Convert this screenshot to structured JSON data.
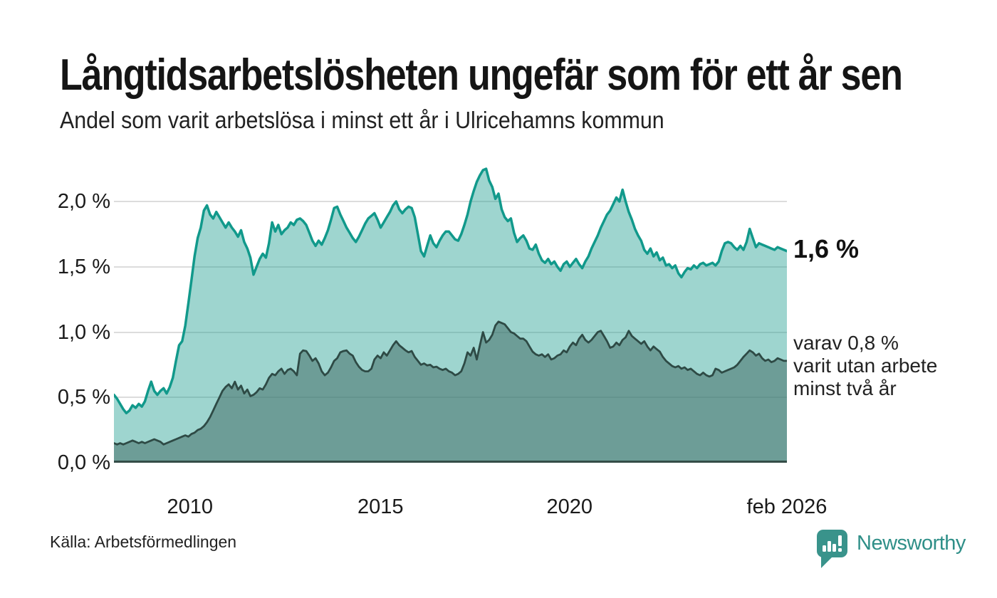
{
  "title": "Långtidsarbetslösheten ungefär som för ett år sen",
  "subtitle": "Andel som varit arbetslösa i minst ett år i Ulricehamns kommun",
  "source": "Källa: Arbetsförmedlingen",
  "logo": {
    "text": "Newsworthy"
  },
  "colors": {
    "accent_teal": "#11998b",
    "light_fill": "#9ed4cf",
    "dark_fill": "#6f9d97",
    "dark_stroke": "#2e4a45",
    "grid": "#dcdcdc",
    "baseline": "#344c47",
    "text": "#1a1a1a",
    "logo_teal": "#2f8f88"
  },
  "annotations": {
    "end_value_label": "1,6 %",
    "secondary_label_lines": [
      "varav 0,8 %",
      "varit utan arbete",
      "minst två år"
    ]
  },
  "chart_data": {
    "type": "area",
    "title": "Långtidsarbetslösheten ungefär som för ett år sen",
    "subtitle": "Andel som varit arbetslösa i minst ett år i Ulricehamns kommun",
    "unit": "%",
    "frequency": "monthly",
    "x_start": "2008-01",
    "x_end": "2026-02",
    "ylim": [
      0,
      2.34
    ],
    "grid": "horizontal",
    "legend": "end-labels",
    "yticks": [
      {
        "value": 0.0,
        "label": "0,0 %"
      },
      {
        "value": 0.5,
        "label": "0,5 %"
      },
      {
        "value": 1.0,
        "label": "1,0 %"
      },
      {
        "value": 1.5,
        "label": "1,5 %"
      },
      {
        "value": 2.0,
        "label": "2,0 %"
      }
    ],
    "xticks": [
      {
        "label": "2010",
        "pos": 0.113
      },
      {
        "label": "2015",
        "pos": 0.396
      },
      {
        "label": "2020",
        "pos": 0.677
      },
      {
        "label": "feb 2026",
        "pos": 1.0
      }
    ],
    "series": [
      {
        "name": "Andel arbetslösa minst ett år",
        "end_label": "1,6 %",
        "end_value": 1.6,
        "stroke": "#11998b",
        "fill": "rgba(23,154,140,0.42)",
        "stroke_width": 3.5,
        "values": [
          0.52,
          0.49,
          0.45,
          0.41,
          0.38,
          0.4,
          0.44,
          0.42,
          0.45,
          0.43,
          0.47,
          0.55,
          0.62,
          0.55,
          0.52,
          0.55,
          0.57,
          0.53,
          0.58,
          0.65,
          0.78,
          0.9,
          0.93,
          1.05,
          1.22,
          1.4,
          1.58,
          1.72,
          1.8,
          1.93,
          1.97,
          1.9,
          1.87,
          1.92,
          1.88,
          1.84,
          1.8,
          1.84,
          1.8,
          1.77,
          1.73,
          1.78,
          1.69,
          1.64,
          1.57,
          1.44,
          1.5,
          1.56,
          1.6,
          1.57,
          1.68,
          1.84,
          1.77,
          1.82,
          1.75,
          1.78,
          1.8,
          1.84,
          1.82,
          1.86,
          1.87,
          1.85,
          1.82,
          1.76,
          1.7,
          1.66,
          1.7,
          1.67,
          1.72,
          1.78,
          1.86,
          1.95,
          1.96,
          1.9,
          1.85,
          1.8,
          1.76,
          1.72,
          1.69,
          1.73,
          1.78,
          1.83,
          1.87,
          1.89,
          1.91,
          1.86,
          1.8,
          1.84,
          1.88,
          1.92,
          1.97,
          2.0,
          1.94,
          1.91,
          1.94,
          1.96,
          1.95,
          1.88,
          1.75,
          1.62,
          1.58,
          1.66,
          1.74,
          1.68,
          1.65,
          1.7,
          1.74,
          1.77,
          1.77,
          1.74,
          1.71,
          1.7,
          1.75,
          1.82,
          1.9,
          2.0,
          2.08,
          2.15,
          2.2,
          2.24,
          2.25,
          2.16,
          2.11,
          2.02,
          2.06,
          1.94,
          1.88,
          1.85,
          1.87,
          1.76,
          1.69,
          1.72,
          1.74,
          1.7,
          1.64,
          1.63,
          1.67,
          1.6,
          1.55,
          1.53,
          1.56,
          1.52,
          1.54,
          1.5,
          1.47,
          1.52,
          1.54,
          1.5,
          1.53,
          1.56,
          1.52,
          1.49,
          1.54,
          1.58,
          1.64,
          1.69,
          1.74,
          1.8,
          1.85,
          1.9,
          1.93,
          1.98,
          2.03,
          2.0,
          2.09,
          2.0,
          1.92,
          1.86,
          1.79,
          1.74,
          1.7,
          1.63,
          1.6,
          1.64,
          1.58,
          1.61,
          1.55,
          1.57,
          1.51,
          1.52,
          1.49,
          1.51,
          1.45,
          1.42,
          1.46,
          1.49,
          1.48,
          1.51,
          1.49,
          1.52,
          1.53,
          1.51,
          1.52,
          1.53,
          1.51,
          1.54,
          1.62,
          1.68,
          1.69,
          1.68,
          1.65,
          1.63,
          1.66,
          1.63,
          1.69,
          1.79,
          1.72,
          1.65,
          1.68,
          1.67,
          1.66,
          1.65,
          1.64,
          1.63,
          1.65,
          1.64,
          1.63,
          1.62
        ]
      },
      {
        "name": "Andel arbetslösa minst två år",
        "end_label": "varav 0,8 % varit utan arbete minst två år",
        "end_value": 0.8,
        "stroke": "#2e4a45",
        "fill": "rgba(69,112,105,0.55)",
        "stroke_width": 2.8,
        "values": [
          0.15,
          0.14,
          0.15,
          0.14,
          0.15,
          0.16,
          0.17,
          0.16,
          0.15,
          0.16,
          0.15,
          0.16,
          0.17,
          0.18,
          0.17,
          0.16,
          0.14,
          0.15,
          0.16,
          0.17,
          0.18,
          0.19,
          0.2,
          0.21,
          0.2,
          0.22,
          0.23,
          0.25,
          0.26,
          0.28,
          0.31,
          0.35,
          0.4,
          0.45,
          0.5,
          0.55,
          0.58,
          0.6,
          0.57,
          0.62,
          0.56,
          0.59,
          0.53,
          0.56,
          0.51,
          0.52,
          0.54,
          0.57,
          0.56,
          0.6,
          0.65,
          0.68,
          0.67,
          0.7,
          0.72,
          0.68,
          0.71,
          0.72,
          0.7,
          0.67,
          0.835,
          0.86,
          0.855,
          0.82,
          0.78,
          0.8,
          0.76,
          0.7,
          0.67,
          0.69,
          0.73,
          0.78,
          0.8,
          0.845,
          0.855,
          0.86,
          0.835,
          0.82,
          0.77,
          0.735,
          0.71,
          0.7,
          0.7,
          0.72,
          0.79,
          0.82,
          0.8,
          0.845,
          0.82,
          0.86,
          0.9,
          0.93,
          0.9,
          0.88,
          0.86,
          0.845,
          0.855,
          0.81,
          0.78,
          0.75,
          0.76,
          0.745,
          0.75,
          0.73,
          0.735,
          0.72,
          0.71,
          0.72,
          0.7,
          0.69,
          0.67,
          0.68,
          0.7,
          0.76,
          0.845,
          0.82,
          0.88,
          0.79,
          0.9,
          1.0,
          0.92,
          0.94,
          0.98,
          1.05,
          1.08,
          1.07,
          1.06,
          1.03,
          1.0,
          0.99,
          0.97,
          0.95,
          0.95,
          0.93,
          0.89,
          0.85,
          0.83,
          0.82,
          0.83,
          0.81,
          0.83,
          0.79,
          0.8,
          0.82,
          0.83,
          0.86,
          0.845,
          0.89,
          0.92,
          0.9,
          0.95,
          0.98,
          0.94,
          0.92,
          0.94,
          0.97,
          1.0,
          1.01,
          0.97,
          0.93,
          0.88,
          0.89,
          0.92,
          0.9,
          0.94,
          0.96,
          1.01,
          0.97,
          0.95,
          0.93,
          0.91,
          0.93,
          0.89,
          0.86,
          0.89,
          0.87,
          0.85,
          0.81,
          0.78,
          0.76,
          0.74,
          0.73,
          0.74,
          0.72,
          0.73,
          0.71,
          0.72,
          0.7,
          0.68,
          0.67,
          0.69,
          0.67,
          0.66,
          0.67,
          0.72,
          0.71,
          0.69,
          0.7,
          0.71,
          0.72,
          0.73,
          0.75,
          0.78,
          0.81,
          0.835,
          0.86,
          0.845,
          0.82,
          0.835,
          0.8,
          0.78,
          0.79,
          0.77,
          0.78,
          0.8,
          0.79,
          0.78,
          0.78
        ]
      }
    ]
  }
}
